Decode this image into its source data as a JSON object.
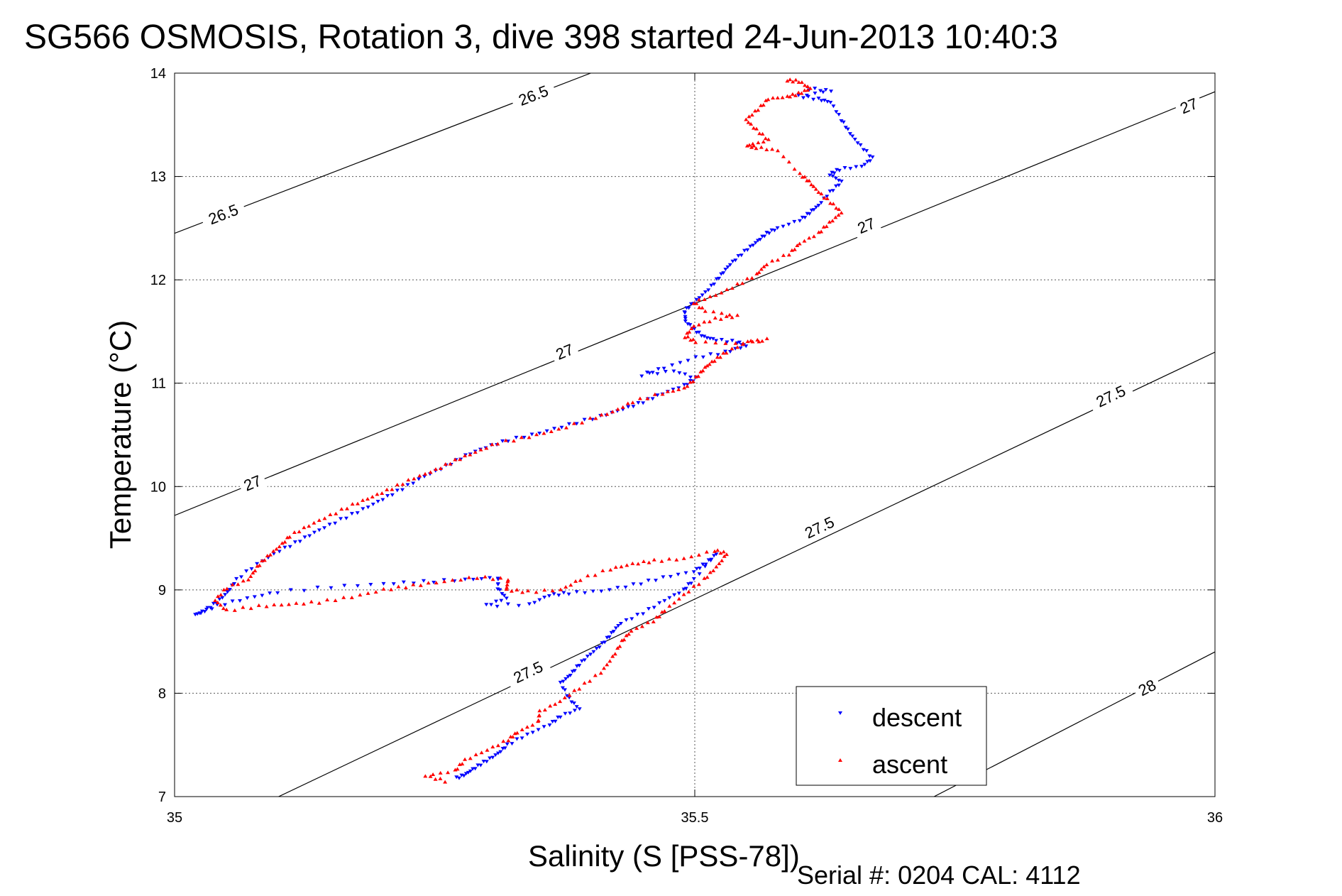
{
  "chart_data": {
    "type": "scatter",
    "title": "SG566 OSMOSIS, Rotation 3, dive 398 started 24-Jun-2013 10:40:3",
    "xlabel": "Salinity (S [PSS-78])",
    "ylabel": "Temperature (°C)",
    "xlim": [
      35,
      36
    ],
    "ylim": [
      7,
      14
    ],
    "x_ticks": [
      35,
      35.5,
      36
    ],
    "x_tick_labels": [
      "35",
      "35.5",
      "36"
    ],
    "y_ticks": [
      7,
      8,
      9,
      10,
      11,
      12,
      13,
      14
    ],
    "y_tick_labels": [
      "7",
      "8",
      "9",
      "10",
      "11",
      "12",
      "13",
      "14"
    ],
    "grid": true,
    "legend_position": "bottom-right",
    "density_contours": [
      {
        "label": "26.5",
        "line": [
          [
            35.0,
            12.45
          ],
          [
            35.4,
            14.0
          ]
        ],
        "label_points": [
          [
            35.047,
            12.63
          ],
          [
            35.345,
            13.78
          ]
        ]
      },
      {
        "label": "27",
        "line": [
          [
            35.0,
            9.72
          ],
          [
            36.0,
            13.82
          ]
        ],
        "label_points": [
          [
            35.075,
            10.03
          ],
          [
            35.375,
            11.3
          ],
          [
            35.665,
            12.52
          ],
          [
            35.975,
            13.68
          ]
        ]
      },
      {
        "label": "27.5",
        "line": [
          [
            35.1,
            7.0
          ],
          [
            36.0,
            11.3
          ]
        ],
        "label_points": [
          [
            35.34,
            8.2
          ],
          [
            35.62,
            9.6
          ],
          [
            35.9,
            10.87
          ]
        ]
      },
      {
        "label": "28",
        "line": [
          [
            35.73,
            7.0
          ],
          [
            36.0,
            8.4
          ]
        ],
        "label_points": [
          [
            35.935,
            8.05
          ]
        ]
      }
    ],
    "series": [
      {
        "name": "descent",
        "color": "#0000ff",
        "marker": "triangle-down",
        "path": [
          [
            35.61,
            13.85
          ],
          [
            35.63,
            13.83
          ],
          [
            35.6,
            13.78
          ],
          [
            35.62,
            13.75
          ],
          [
            35.63,
            13.72
          ],
          [
            35.64,
            13.55
          ],
          [
            35.65,
            13.42
          ],
          [
            35.66,
            13.3
          ],
          [
            35.67,
            13.18
          ],
          [
            35.66,
            13.1
          ],
          [
            35.64,
            13.07
          ],
          [
            35.63,
            13.02
          ],
          [
            35.64,
            12.95
          ],
          [
            35.63,
            12.85
          ],
          [
            35.62,
            12.72
          ],
          [
            35.61,
            12.65
          ],
          [
            35.6,
            12.58
          ],
          [
            35.58,
            12.5
          ],
          [
            35.57,
            12.45
          ],
          [
            35.56,
            12.38
          ],
          [
            35.55,
            12.3
          ],
          [
            35.54,
            12.2
          ],
          [
            35.53,
            12.1
          ],
          [
            35.52,
            12.0
          ],
          [
            35.51,
            11.88
          ],
          [
            35.5,
            11.78
          ],
          [
            35.49,
            11.7
          ],
          [
            35.49,
            11.6
          ],
          [
            35.5,
            11.52
          ],
          [
            35.51,
            11.45
          ],
          [
            35.52,
            11.42
          ],
          [
            35.54,
            11.4
          ],
          [
            35.55,
            11.36
          ],
          [
            35.53,
            11.3
          ],
          [
            35.5,
            11.25
          ],
          [
            35.47,
            11.15
          ],
          [
            35.45,
            11.08
          ],
          [
            35.48,
            11.12
          ],
          [
            35.5,
            11.05
          ],
          [
            35.49,
            10.98
          ],
          [
            35.47,
            10.9
          ],
          [
            35.45,
            10.82
          ],
          [
            35.43,
            10.75
          ],
          [
            35.41,
            10.68
          ],
          [
            35.38,
            10.6
          ],
          [
            35.35,
            10.52
          ],
          [
            35.32,
            10.45
          ],
          [
            35.3,
            10.38
          ],
          [
            35.28,
            10.3
          ],
          [
            35.26,
            10.2
          ],
          [
            35.24,
            10.1
          ],
          [
            35.22,
            9.98
          ],
          [
            35.2,
            9.88
          ],
          [
            35.18,
            9.78
          ],
          [
            35.16,
            9.68
          ],
          [
            35.14,
            9.58
          ],
          [
            35.12,
            9.48
          ],
          [
            35.1,
            9.38
          ],
          [
            35.08,
            9.25
          ],
          [
            35.06,
            9.1
          ],
          [
            35.05,
            8.98
          ],
          [
            35.04,
            8.88
          ],
          [
            35.03,
            8.8
          ],
          [
            35.02,
            8.76
          ],
          [
            35.04,
            8.85
          ],
          [
            35.07,
            8.92
          ],
          [
            35.1,
            8.98
          ],
          [
            35.15,
            9.03
          ],
          [
            35.2,
            9.06
          ],
          [
            35.24,
            9.08
          ],
          [
            35.28,
            9.1
          ],
          [
            35.31,
            9.12
          ],
          [
            35.31,
            9.02
          ],
          [
            35.32,
            8.92
          ],
          [
            35.3,
            8.85
          ],
          [
            35.34,
            8.86
          ],
          [
            35.36,
            8.95
          ],
          [
            35.38,
            8.97
          ],
          [
            35.41,
            8.99
          ],
          [
            35.44,
            9.05
          ],
          [
            35.47,
            9.12
          ],
          [
            35.5,
            9.18
          ],
          [
            35.51,
            9.26
          ],
          [
            35.52,
            9.35
          ],
          [
            35.5,
            9.1
          ],
          [
            35.49,
            9.0
          ],
          [
            35.47,
            8.9
          ],
          [
            35.45,
            8.78
          ],
          [
            35.43,
            8.68
          ],
          [
            35.42,
            8.58
          ],
          [
            35.41,
            8.48
          ],
          [
            35.4,
            8.38
          ],
          [
            35.39,
            8.28
          ],
          [
            35.38,
            8.18
          ],
          [
            35.37,
            8.1
          ],
          [
            35.38,
            7.95
          ],
          [
            35.39,
            7.85
          ],
          [
            35.37,
            7.78
          ],
          [
            35.36,
            7.7
          ],
          [
            35.34,
            7.6
          ],
          [
            35.32,
            7.5
          ],
          [
            35.31,
            7.42
          ],
          [
            35.3,
            7.35
          ],
          [
            35.29,
            7.28
          ],
          [
            35.28,
            7.22
          ],
          [
            35.27,
            7.18
          ]
        ]
      },
      {
        "name": "ascent",
        "color": "#ff0000",
        "marker": "triangle-up",
        "path": [
          [
            35.26,
            7.15
          ],
          [
            35.24,
            7.2
          ],
          [
            35.27,
            7.25
          ],
          [
            35.28,
            7.35
          ],
          [
            35.3,
            7.45
          ],
          [
            35.32,
            7.55
          ],
          [
            35.33,
            7.62
          ],
          [
            35.35,
            7.72
          ],
          [
            35.35,
            7.82
          ],
          [
            35.37,
            7.92
          ],
          [
            35.39,
            8.05
          ],
          [
            35.41,
            8.2
          ],
          [
            35.42,
            8.35
          ],
          [
            35.43,
            8.5
          ],
          [
            35.44,
            8.6
          ],
          [
            35.46,
            8.7
          ],
          [
            35.47,
            8.8
          ],
          [
            35.49,
            8.95
          ],
          [
            35.51,
            9.1
          ],
          [
            35.52,
            9.22
          ],
          [
            35.53,
            9.35
          ],
          [
            35.52,
            9.38
          ],
          [
            35.49,
            9.3
          ],
          [
            35.46,
            9.28
          ],
          [
            35.44,
            9.25
          ],
          [
            35.42,
            9.2
          ],
          [
            35.39,
            9.1
          ],
          [
            35.37,
            9.0
          ],
          [
            35.34,
            8.98
          ],
          [
            35.32,
            9.0
          ],
          [
            35.32,
            9.1
          ],
          [
            35.29,
            9.12
          ],
          [
            35.26,
            9.08
          ],
          [
            35.23,
            9.04
          ],
          [
            35.2,
            9.0
          ],
          [
            35.17,
            8.93
          ],
          [
            35.14,
            8.88
          ],
          [
            35.11,
            8.86
          ],
          [
            35.08,
            8.84
          ],
          [
            35.05,
            8.8
          ],
          [
            35.04,
            8.9
          ],
          [
            35.05,
            9.02
          ],
          [
            35.07,
            9.1
          ],
          [
            35.08,
            9.22
          ],
          [
            35.09,
            9.32
          ],
          [
            35.1,
            9.42
          ],
          [
            35.11,
            9.52
          ],
          [
            35.13,
            9.62
          ],
          [
            35.15,
            9.72
          ],
          [
            35.17,
            9.82
          ],
          [
            35.19,
            9.9
          ],
          [
            35.21,
            9.98
          ],
          [
            35.23,
            10.08
          ],
          [
            35.25,
            10.16
          ],
          [
            35.27,
            10.25
          ],
          [
            35.29,
            10.33
          ],
          [
            35.31,
            10.42
          ],
          [
            35.34,
            10.48
          ],
          [
            35.37,
            10.55
          ],
          [
            35.4,
            10.65
          ],
          [
            35.42,
            10.72
          ],
          [
            35.44,
            10.82
          ],
          [
            35.47,
            10.9
          ],
          [
            35.49,
            10.95
          ],
          [
            35.5,
            11.05
          ],
          [
            35.51,
            11.15
          ],
          [
            35.52,
            11.22
          ],
          [
            35.53,
            11.3
          ],
          [
            35.55,
            11.4
          ],
          [
            35.57,
            11.42
          ],
          [
            35.54,
            11.38
          ],
          [
            35.5,
            11.4
          ],
          [
            35.49,
            11.45
          ],
          [
            35.5,
            11.55
          ],
          [
            35.52,
            11.62
          ],
          [
            35.54,
            11.65
          ],
          [
            35.51,
            11.7
          ],
          [
            35.5,
            11.78
          ],
          [
            35.52,
            11.85
          ],
          [
            35.54,
            11.95
          ],
          [
            35.56,
            12.05
          ],
          [
            35.57,
            12.15
          ],
          [
            35.59,
            12.25
          ],
          [
            35.6,
            12.35
          ],
          [
            35.62,
            12.45
          ],
          [
            35.63,
            12.55
          ],
          [
            35.64,
            12.65
          ],
          [
            35.63,
            12.75
          ],
          [
            35.62,
            12.85
          ],
          [
            35.61,
            12.95
          ],
          [
            35.6,
            13.02
          ],
          [
            35.58,
            13.25
          ],
          [
            35.56,
            13.28
          ],
          [
            35.55,
            13.3
          ],
          [
            35.57,
            13.35
          ],
          [
            35.56,
            13.45
          ],
          [
            35.55,
            13.55
          ],
          [
            35.56,
            13.65
          ],
          [
            35.57,
            13.75
          ],
          [
            35.59,
            13.77
          ],
          [
            35.6,
            13.8
          ],
          [
            35.61,
            13.85
          ],
          [
            35.6,
            13.92
          ],
          [
            35.59,
            13.93
          ]
        ]
      }
    ]
  },
  "legend": {
    "descent_label": "descent",
    "ascent_label": "ascent"
  },
  "footer": {
    "text": "Serial #: 0204  CAL: 4112"
  }
}
